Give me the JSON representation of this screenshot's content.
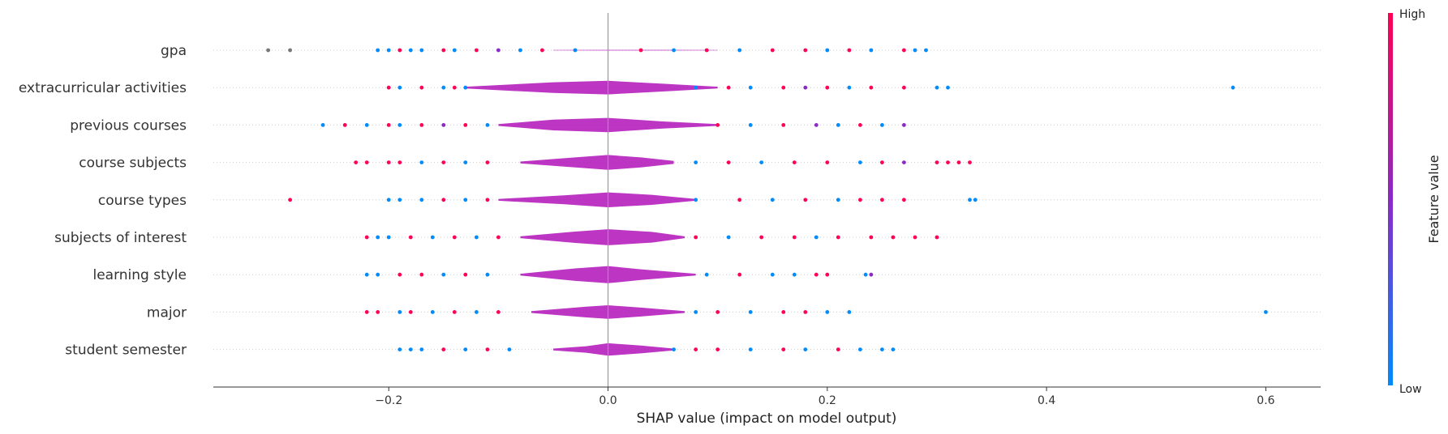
{
  "chart_data": {
    "type": "scatter",
    "subtype": "shap-summary-violin-beeswarm",
    "xlabel": "SHAP value (impact on model output)",
    "xlim": [
      -0.36,
      0.65
    ],
    "x_ticks": [
      {
        "value": -0.2,
        "label": "−0.2"
      },
      {
        "value": 0.0,
        "label": "0.0"
      },
      {
        "value": 0.2,
        "label": "0.2"
      },
      {
        "value": 0.4,
        "label": "0.4"
      },
      {
        "value": 0.6,
        "label": "0.6"
      }
    ],
    "grid": false,
    "colorbar": {
      "title": "Feature value",
      "high_label": "High",
      "low_label": "Low",
      "high_color": "#ff0052",
      "low_color": "#008bfb",
      "mid_color": "#8c29c6"
    },
    "features": [
      {
        "name": "gpa",
        "violin": [
          [
            -0.05,
            0.01
          ],
          [
            0.0,
            0.02
          ],
          [
            0.05,
            0.02
          ],
          [
            0.1,
            0.01
          ]
        ],
        "points": [
          [
            -0.31,
            0.5,
            "gray"
          ],
          [
            -0.29,
            0.5,
            "gray"
          ],
          [
            -0.21,
            0.2,
            "low"
          ],
          [
            -0.2,
            0.3,
            "low"
          ],
          [
            -0.19,
            0.8,
            "high"
          ],
          [
            -0.18,
            0.1,
            "low"
          ],
          [
            -0.17,
            0.2,
            "low"
          ],
          [
            -0.15,
            0.9,
            "high"
          ],
          [
            -0.14,
            0.2,
            "low"
          ],
          [
            -0.12,
            0.8,
            "high"
          ],
          [
            -0.1,
            0.4,
            "mid"
          ],
          [
            -0.08,
            0.1,
            "low"
          ],
          [
            -0.06,
            0.9,
            "high"
          ],
          [
            -0.03,
            0.3,
            "low"
          ],
          [
            0.03,
            0.7,
            "high"
          ],
          [
            0.06,
            0.2,
            "low"
          ],
          [
            0.09,
            0.8,
            "high"
          ],
          [
            0.12,
            0.3,
            "low"
          ],
          [
            0.15,
            0.9,
            "high"
          ],
          [
            0.18,
            0.6,
            "high"
          ],
          [
            0.2,
            0.2,
            "low"
          ],
          [
            0.22,
            0.8,
            "high"
          ],
          [
            0.24,
            0.1,
            "low"
          ],
          [
            0.27,
            0.9,
            "high"
          ],
          [
            0.28,
            0.2,
            "low"
          ],
          [
            0.29,
            0.1,
            "low"
          ]
        ]
      },
      {
        "name": "extracurricular activities",
        "violin": [
          [
            -0.13,
            0.05
          ],
          [
            -0.05,
            0.3
          ],
          [
            0.0,
            0.38
          ],
          [
            0.05,
            0.22
          ],
          [
            0.1,
            0.05
          ]
        ],
        "points": [
          [
            -0.2,
            0.9,
            "high"
          ],
          [
            -0.19,
            0.2,
            "low"
          ],
          [
            -0.17,
            0.9,
            "high"
          ],
          [
            -0.15,
            0.3,
            "low"
          ],
          [
            -0.14,
            0.8,
            "high"
          ],
          [
            -0.13,
            0.3,
            "low"
          ],
          [
            0.08,
            0.3,
            "low"
          ],
          [
            0.11,
            0.9,
            "high"
          ],
          [
            0.13,
            0.3,
            "low"
          ],
          [
            0.16,
            0.8,
            "high"
          ],
          [
            0.18,
            0.4,
            "mid"
          ],
          [
            0.2,
            0.8,
            "high"
          ],
          [
            0.22,
            0.2,
            "low"
          ],
          [
            0.24,
            0.9,
            "high"
          ],
          [
            0.27,
            0.6,
            "high"
          ],
          [
            0.3,
            0.1,
            "low"
          ],
          [
            0.31,
            0.2,
            "low"
          ],
          [
            0.57,
            0.1,
            "low"
          ]
        ]
      },
      {
        "name": "previous courses",
        "violin": [
          [
            -0.1,
            0.05
          ],
          [
            -0.05,
            0.3
          ],
          [
            0.0,
            0.4
          ],
          [
            0.05,
            0.2
          ],
          [
            0.1,
            0.05
          ]
        ],
        "points": [
          [
            -0.26,
            0.2,
            "low"
          ],
          [
            -0.24,
            0.9,
            "high"
          ],
          [
            -0.22,
            0.1,
            "low"
          ],
          [
            -0.2,
            0.8,
            "high"
          ],
          [
            -0.19,
            0.2,
            "low"
          ],
          [
            -0.17,
            0.8,
            "high"
          ],
          [
            -0.15,
            0.4,
            "mid"
          ],
          [
            -0.13,
            0.9,
            "high"
          ],
          [
            -0.11,
            0.2,
            "low"
          ],
          [
            0.1,
            0.8,
            "high"
          ],
          [
            0.13,
            0.2,
            "low"
          ],
          [
            0.16,
            0.9,
            "high"
          ],
          [
            0.19,
            0.5,
            "mid"
          ],
          [
            0.21,
            0.2,
            "low"
          ],
          [
            0.23,
            0.9,
            "high"
          ],
          [
            0.25,
            0.2,
            "low"
          ],
          [
            0.27,
            0.5,
            "mid"
          ]
        ]
      },
      {
        "name": "course subjects",
        "violin": [
          [
            -0.08,
            0.05
          ],
          [
            -0.03,
            0.28
          ],
          [
            0.0,
            0.42
          ],
          [
            0.03,
            0.28
          ],
          [
            0.06,
            0.08
          ]
        ],
        "points": [
          [
            -0.23,
            0.9,
            "high"
          ],
          [
            -0.22,
            0.8,
            "high"
          ],
          [
            -0.2,
            0.9,
            "high"
          ],
          [
            -0.19,
            0.6,
            "high"
          ],
          [
            -0.17,
            0.2,
            "low"
          ],
          [
            -0.15,
            0.9,
            "high"
          ],
          [
            -0.13,
            0.3,
            "low"
          ],
          [
            -0.11,
            0.8,
            "high"
          ],
          [
            0.08,
            0.3,
            "low"
          ],
          [
            0.11,
            0.9,
            "high"
          ],
          [
            0.14,
            0.2,
            "low"
          ],
          [
            0.17,
            0.8,
            "high"
          ],
          [
            0.2,
            0.9,
            "high"
          ],
          [
            0.23,
            0.2,
            "low"
          ],
          [
            0.25,
            0.8,
            "high"
          ],
          [
            0.27,
            0.5,
            "mid"
          ],
          [
            0.3,
            0.9,
            "high"
          ],
          [
            0.31,
            0.8,
            "high"
          ],
          [
            0.32,
            0.9,
            "high"
          ],
          [
            0.33,
            0.9,
            "high"
          ]
        ]
      },
      {
        "name": "course types",
        "violin": [
          [
            -0.1,
            0.05
          ],
          [
            -0.04,
            0.25
          ],
          [
            0.0,
            0.42
          ],
          [
            0.04,
            0.28
          ],
          [
            0.08,
            0.05
          ]
        ],
        "points": [
          [
            -0.29,
            0.9,
            "high"
          ],
          [
            -0.2,
            0.2,
            "low"
          ],
          [
            -0.19,
            0.1,
            "low"
          ],
          [
            -0.17,
            0.3,
            "low"
          ],
          [
            -0.15,
            0.8,
            "high"
          ],
          [
            -0.13,
            0.2,
            "low"
          ],
          [
            -0.11,
            0.9,
            "high"
          ],
          [
            0.08,
            0.3,
            "low"
          ],
          [
            0.12,
            0.8,
            "high"
          ],
          [
            0.15,
            0.2,
            "low"
          ],
          [
            0.18,
            0.9,
            "high"
          ],
          [
            0.21,
            0.3,
            "low"
          ],
          [
            0.23,
            0.8,
            "high"
          ],
          [
            0.25,
            0.9,
            "high"
          ],
          [
            0.27,
            0.6,
            "high"
          ],
          [
            0.33,
            0.2,
            "low"
          ],
          [
            0.335,
            0.1,
            "low"
          ]
        ]
      },
      {
        "name": "subjects of interest",
        "violin": [
          [
            -0.08,
            0.05
          ],
          [
            -0.03,
            0.32
          ],
          [
            0.0,
            0.45
          ],
          [
            0.04,
            0.3
          ],
          [
            0.07,
            0.05
          ]
        ],
        "points": [
          [
            -0.22,
            0.9,
            "high"
          ],
          [
            -0.21,
            0.2,
            "low"
          ],
          [
            -0.2,
            0.3,
            "low"
          ],
          [
            -0.18,
            0.8,
            "high"
          ],
          [
            -0.16,
            0.2,
            "low"
          ],
          [
            -0.14,
            0.9,
            "high"
          ],
          [
            -0.12,
            0.3,
            "low"
          ],
          [
            -0.1,
            0.8,
            "high"
          ],
          [
            0.08,
            0.9,
            "high"
          ],
          [
            0.11,
            0.2,
            "low"
          ],
          [
            0.14,
            0.8,
            "high"
          ],
          [
            0.17,
            0.9,
            "high"
          ],
          [
            0.19,
            0.2,
            "low"
          ],
          [
            0.21,
            0.9,
            "high"
          ],
          [
            0.24,
            0.6,
            "high"
          ],
          [
            0.26,
            0.9,
            "high"
          ],
          [
            0.28,
            0.8,
            "high"
          ],
          [
            0.3,
            0.9,
            "high"
          ]
        ]
      },
      {
        "name": "learning style",
        "violin": [
          [
            -0.08,
            0.05
          ],
          [
            -0.03,
            0.35
          ],
          [
            0.0,
            0.48
          ],
          [
            0.03,
            0.3
          ],
          [
            0.08,
            0.05
          ]
        ],
        "points": [
          [
            -0.22,
            0.2,
            "low"
          ],
          [
            -0.21,
            0.1,
            "low"
          ],
          [
            -0.19,
            0.9,
            "high"
          ],
          [
            -0.17,
            0.8,
            "high"
          ],
          [
            -0.15,
            0.2,
            "low"
          ],
          [
            -0.13,
            0.8,
            "high"
          ],
          [
            -0.11,
            0.2,
            "low"
          ],
          [
            0.09,
            0.2,
            "low"
          ],
          [
            0.12,
            0.8,
            "high"
          ],
          [
            0.15,
            0.3,
            "low"
          ],
          [
            0.17,
            0.2,
            "low"
          ],
          [
            0.19,
            0.9,
            "high"
          ],
          [
            0.2,
            0.8,
            "high"
          ],
          [
            0.235,
            0.2,
            "low"
          ],
          [
            0.24,
            0.5,
            "mid"
          ]
        ]
      },
      {
        "name": "major",
        "violin": [
          [
            -0.07,
            0.05
          ],
          [
            -0.02,
            0.3
          ],
          [
            0.0,
            0.38
          ],
          [
            0.03,
            0.25
          ],
          [
            0.07,
            0.05
          ]
        ],
        "points": [
          [
            -0.22,
            0.9,
            "high"
          ],
          [
            -0.21,
            0.8,
            "high"
          ],
          [
            -0.19,
            0.2,
            "low"
          ],
          [
            -0.18,
            0.9,
            "high"
          ],
          [
            -0.16,
            0.3,
            "low"
          ],
          [
            -0.14,
            0.8,
            "high"
          ],
          [
            -0.12,
            0.2,
            "low"
          ],
          [
            -0.1,
            0.9,
            "high"
          ],
          [
            0.08,
            0.3,
            "low"
          ],
          [
            0.1,
            0.9,
            "high"
          ],
          [
            0.13,
            0.2,
            "low"
          ],
          [
            0.16,
            0.8,
            "high"
          ],
          [
            0.18,
            0.9,
            "high"
          ],
          [
            0.2,
            0.3,
            "low"
          ],
          [
            0.22,
            0.2,
            "low"
          ],
          [
            0.6,
            0.2,
            "low"
          ]
        ]
      },
      {
        "name": "student semester",
        "violin": [
          [
            -0.05,
            0.05
          ],
          [
            -0.02,
            0.18
          ],
          [
            0.0,
            0.35
          ],
          [
            0.03,
            0.22
          ],
          [
            0.06,
            0.05
          ]
        ],
        "points": [
          [
            -0.19,
            0.2,
            "low"
          ],
          [
            -0.18,
            0.1,
            "low"
          ],
          [
            -0.17,
            0.2,
            "low"
          ],
          [
            -0.15,
            0.9,
            "high"
          ],
          [
            -0.13,
            0.3,
            "low"
          ],
          [
            -0.11,
            0.8,
            "high"
          ],
          [
            -0.09,
            0.2,
            "low"
          ],
          [
            0.06,
            0.3,
            "low"
          ],
          [
            0.08,
            0.9,
            "high"
          ],
          [
            0.1,
            0.8,
            "high"
          ],
          [
            0.13,
            0.2,
            "low"
          ],
          [
            0.16,
            0.9,
            "high"
          ],
          [
            0.18,
            0.2,
            "low"
          ],
          [
            0.21,
            0.8,
            "high"
          ],
          [
            0.23,
            0.2,
            "low"
          ],
          [
            0.25,
            0.3,
            "low"
          ],
          [
            0.26,
            0.2,
            "low"
          ]
        ]
      }
    ]
  }
}
